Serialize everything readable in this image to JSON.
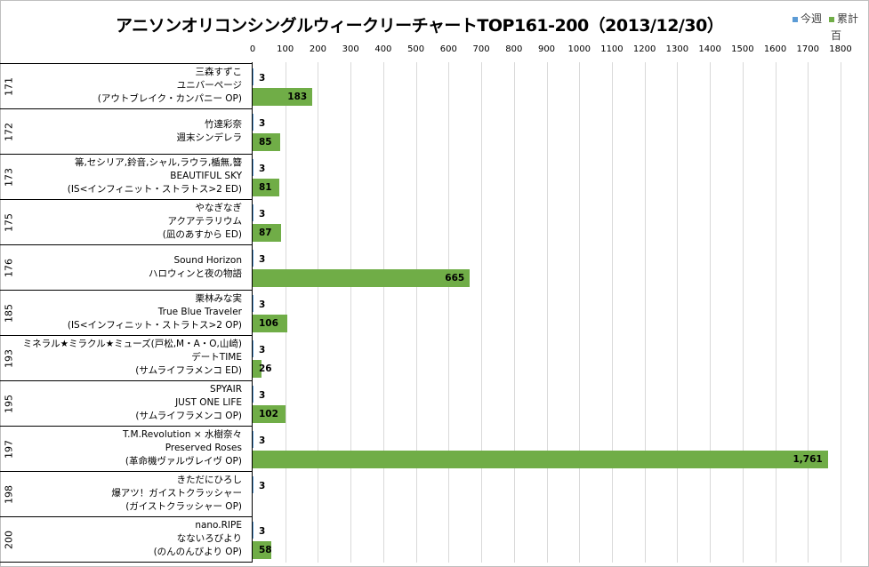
{
  "chart_data": {
    "type": "bar",
    "orientation": "horizontal",
    "title": "アニソンオリコンシングルウィークリーチャートTOP161-200（2013/12/30）",
    "unit_label": "百",
    "xlim": [
      0,
      1800
    ],
    "x_ticks": [
      "0",
      "100",
      "200",
      "300",
      "400",
      "500",
      "600",
      "700",
      "800",
      "900",
      "1000",
      "1100",
      "1200",
      "1300",
      "1400",
      "1500",
      "1600",
      "1700",
      "1800"
    ],
    "grid": true,
    "legend_position": "top-right",
    "colors": {
      "this_week": "#5b9bd5",
      "cumulative": "#70ad47"
    },
    "categories": [
      {
        "rank": "171",
        "lines": [
          "三森すずこ",
          "ユニバーページ",
          "(アウトブレイク・カンパニー OP)"
        ]
      },
      {
        "rank": "172",
        "lines": [
          "竹達彩奈",
          "週末シンデレラ"
        ]
      },
      {
        "rank": "173",
        "lines": [
          "箒,セシリア,鈴音,シャル,ラウラ,楯無,簪",
          "BEAUTIFUL SKY",
          "(IS<インフィニット・ストラトス>2 ED)"
        ]
      },
      {
        "rank": "175",
        "lines": [
          "やなぎなぎ",
          "アクアテラリウム",
          "(凪のあすから ED)"
        ]
      },
      {
        "rank": "176",
        "lines": [
          "Sound Horizon",
          "ハロウィンと夜の物語"
        ]
      },
      {
        "rank": "185",
        "lines": [
          "栗林みな実",
          "True Blue Traveler",
          "(IS<インフィニット・ストラトス>2 OP)"
        ]
      },
      {
        "rank": "193",
        "lines": [
          "ミネラル★ミラクル★ミューズ(戸松,M・A・O,山崎)",
          "デートTIME",
          "(サムライフラメンコ ED)"
        ]
      },
      {
        "rank": "195",
        "lines": [
          "SPYAIR",
          "JUST ONE LIFE",
          "(サムライフラメンコ OP)"
        ]
      },
      {
        "rank": "197",
        "lines": [
          "T.M.Revolution × 水樹奈々",
          "Preserved Roses",
          "(革命機ヴァルヴレイヴ OP)"
        ]
      },
      {
        "rank": "198",
        "lines": [
          "きただにひろし",
          "爆アツ！ガイストクラッシャー",
          "(ガイストクラッシャー OP)"
        ]
      },
      {
        "rank": "200",
        "lines": [
          "nano.RIPE",
          "なないろびより",
          "(のんのんびより OP)"
        ]
      }
    ],
    "series": [
      {
        "name": "今週",
        "values": [
          3,
          3,
          3,
          3,
          3,
          3,
          3,
          3,
          3,
          3,
          3
        ],
        "labels": [
          "3",
          "3",
          "3",
          "3",
          "3",
          "3",
          "3",
          "3",
          "3",
          "3",
          "3"
        ]
      },
      {
        "name": "累計",
        "values": [
          183,
          85,
          81,
          87,
          665,
          106,
          26,
          102,
          1761,
          null,
          58
        ],
        "labels": [
          "183",
          "85",
          "81",
          "87",
          "665",
          "106",
          "26",
          "102",
          "1,761",
          "",
          "58"
        ]
      }
    ]
  }
}
